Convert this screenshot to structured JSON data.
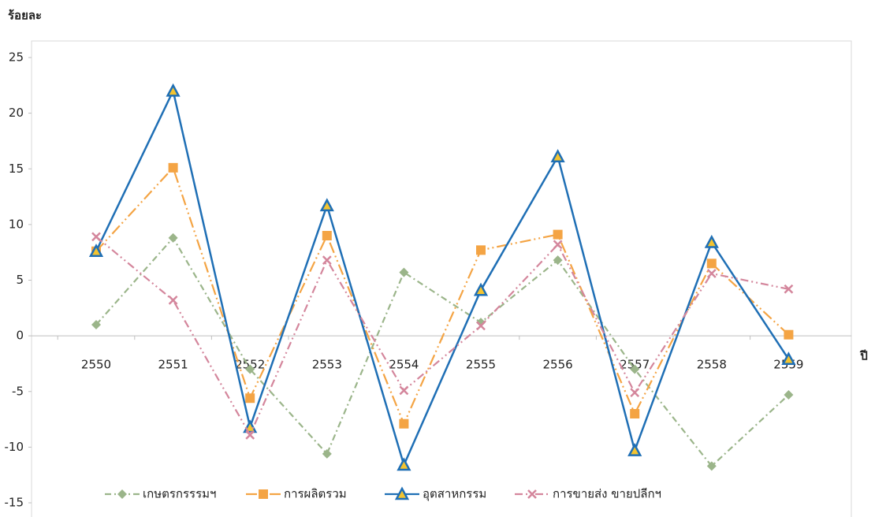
{
  "chart_data": {
    "type": "line",
    "ylabel": "ร้อยละ",
    "xlabel": "ปี",
    "categories": [
      "2550",
      "2551",
      "2552",
      "2553",
      "2554",
      "2555",
      "2556",
      "2557",
      "2558",
      "2559"
    ],
    "series": [
      {
        "name": "เกษตรกรรรมฯ",
        "color": "#9bb58a",
        "values": [
          1.0,
          8.8,
          -3.0,
          -10.6,
          5.7,
          1.2,
          6.8,
          -3.0,
          -11.7,
          -5.3
        ]
      },
      {
        "name": "การผลิตรวม",
        "color": "#f4a444",
        "values": [
          7.6,
          15.1,
          -5.6,
          9.0,
          -7.9,
          7.7,
          9.1,
          -7.0,
          6.5,
          0.1
        ]
      },
      {
        "name": "อุตสาหกรรม",
        "color": "#1f6fb5",
        "values": [
          7.6,
          22.0,
          -8.2,
          11.7,
          -11.6,
          4.1,
          16.1,
          -10.3,
          8.4,
          -2.1
        ]
      },
      {
        "name": "การขายส่ง ขายปลีกฯ",
        "color": "#d4869c",
        "values": [
          8.9,
          3.2,
          -8.9,
          6.8,
          -4.9,
          0.9,
          8.2,
          -5.1,
          5.6,
          4.2
        ]
      }
    ],
    "ylim": [
      -15,
      25
    ],
    "yticks": [
      -15,
      -10,
      -5,
      0,
      5,
      10,
      15,
      20,
      25
    ],
    "grid": false
  }
}
